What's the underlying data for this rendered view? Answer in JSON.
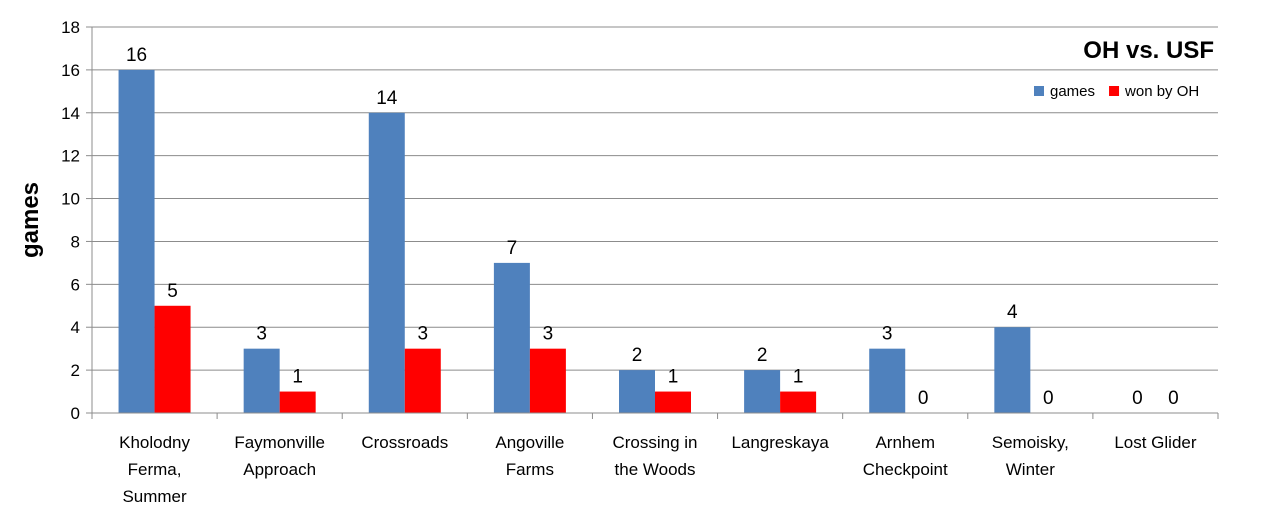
{
  "chart_data": {
    "type": "bar",
    "title": "OH vs. USF",
    "xlabel": "",
    "ylabel": "games",
    "ylim": [
      0,
      18
    ],
    "yticks": [
      0,
      2,
      4,
      6,
      8,
      10,
      12,
      14,
      16,
      18
    ],
    "grid": true,
    "legend_position": "top-right",
    "categories": [
      [
        "Kholodny",
        "Ferma,",
        "Summer"
      ],
      [
        "Faymonville",
        "Approach"
      ],
      [
        "Crossroads"
      ],
      [
        "Angoville",
        "Farms"
      ],
      [
        "Crossing in",
        "the Woods"
      ],
      [
        "Langreskaya"
      ],
      [
        "Arnhem",
        "Checkpoint"
      ],
      [
        "Semoisky,",
        "Winter"
      ],
      [
        "Lost Glider"
      ]
    ],
    "series": [
      {
        "name": "games",
        "color": "#4f81bd",
        "values": [
          16,
          3,
          14,
          7,
          2,
          2,
          3,
          4,
          0
        ]
      },
      {
        "name": "won by OH",
        "color": "#ff0000",
        "values": [
          5,
          1,
          3,
          3,
          1,
          1,
          0,
          0,
          0
        ]
      }
    ]
  }
}
